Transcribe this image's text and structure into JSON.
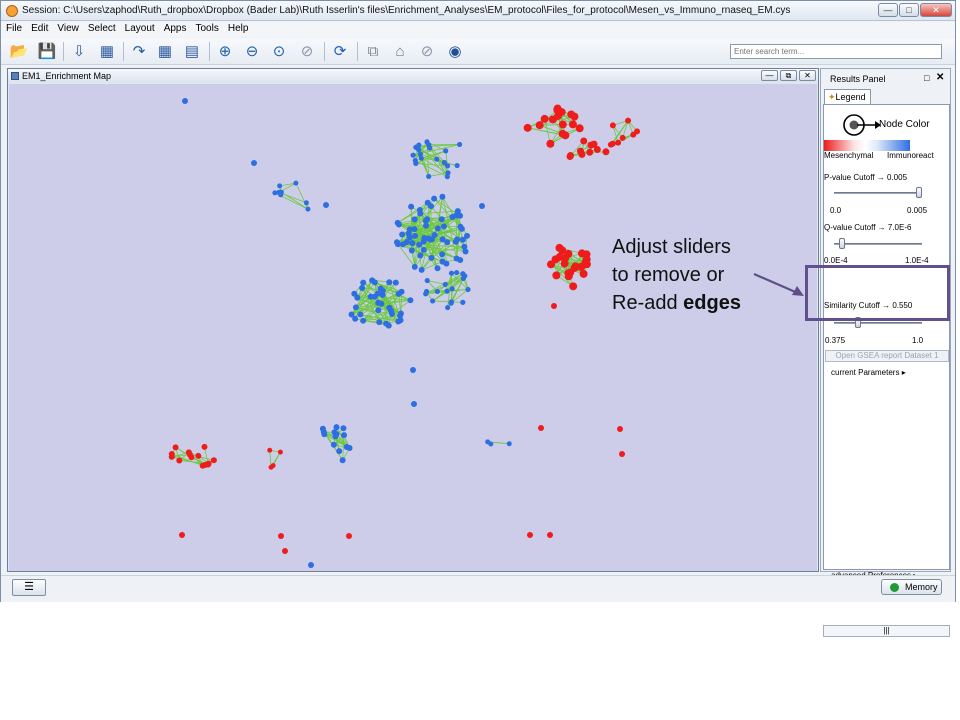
{
  "window": {
    "title": "Session: C:\\Users\\zaphod\\Ruth_dropbox\\Dropbox (Bader Lab)\\Ruth Isserlin's files\\Enrichment_Analyses\\EM_protocol\\Files_for_protocol\\Mesen_vs_Immuno_rnaseq_EM.cys",
    "min": "—",
    "max": "□",
    "close": "✕"
  },
  "menu": [
    "File",
    "Edit",
    "View",
    "Select",
    "Layout",
    "Apps",
    "Tools",
    "Help"
  ],
  "search": {
    "placeholder": "Enter search term..."
  },
  "network": {
    "title": "EM1_Enrichment Map"
  },
  "results": {
    "title": "Results Panel",
    "tab": "Legend"
  },
  "legend": {
    "node_color_label": "Node Color",
    "low_label": "Mesenchymal",
    "high_label": "Immunoreact",
    "colors": {
      "low": "#ef1c1c",
      "high": "#2e6ee3",
      "background": "#cdcde9",
      "edge": "#6dc93f"
    }
  },
  "pvalue": {
    "label": "P-value Cutoff → 0.005",
    "min": "0.0",
    "max": "0.005"
  },
  "qvalue": {
    "label": "Q-value Cutoff → 7.0E-6",
    "min": "0.0E-4",
    "max": "1.0E-4"
  },
  "similarity": {
    "label": "Similarity Cutoff → 0.550",
    "min": "0.375",
    "max": "1.0"
  },
  "buttons": {
    "open_gsea": "Open GSEA report Dataset 1",
    "current_params": "current Parameters",
    "advanced_prefs": "advanced Preferences",
    "memory": "Memory",
    "scroll": "|||"
  },
  "annotation": {
    "line1": "Adjust sliders",
    "line2": "to remove or",
    "line3": "Re-add ",
    "line3_bold": "edges"
  }
}
